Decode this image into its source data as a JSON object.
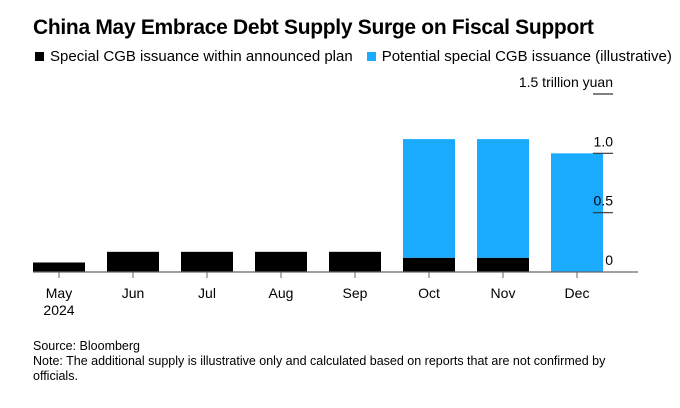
{
  "chart_data": {
    "type": "bar",
    "stacked": true,
    "title": "China May Embrace Debt Supply Surge on Fiscal Support",
    "categories": [
      "May",
      "Jun",
      "Jul",
      "Aug",
      "Sep",
      "Oct",
      "Nov",
      "Dec"
    ],
    "category_sublabels": [
      "2024",
      "",
      "",
      "",
      "",
      "",
      "",
      ""
    ],
    "series": [
      {
        "name": "Special CGB issuance within announced plan",
        "color": "#000000",
        "values": [
          0.08,
          0.17,
          0.17,
          0.17,
          0.17,
          0.12,
          0.12,
          0
        ]
      },
      {
        "name": "Potential special CGB issuance (illustrative)",
        "color": "#1AABFF",
        "values": [
          0,
          0,
          0,
          0,
          0,
          1.0,
          1.0,
          1.0
        ]
      }
    ],
    "ylabel": "trillion yuan",
    "yticks": [
      0,
      0.5,
      1.0,
      1.5
    ],
    "ytick_labels": [
      "0",
      "0.5",
      "1.0",
      "1.5 trillion yuan"
    ],
    "ylim": [
      0,
      1.5
    ],
    "yaxis_position": "right",
    "grid": false,
    "legend_position": "top-left"
  },
  "footer": {
    "source": "Source: Bloomberg",
    "note": "Note: The additional supply is illustrative only and calculated based on reports that are not confirmed by officials."
  }
}
